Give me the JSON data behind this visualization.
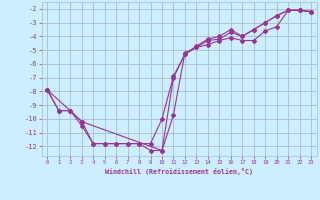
{
  "xlabel": "Windchill (Refroidissement éolien,°C)",
  "background_color": "#cceeff",
  "grid_color": "#aabbcc",
  "line_color": "#993399",
  "xlim": [
    -0.5,
    23.5
  ],
  "ylim": [
    -12.7,
    -1.5
  ],
  "yticks": [
    -12,
    -11,
    -10,
    -9,
    -8,
    -7,
    -6,
    -5,
    -4,
    -3,
    -2
  ],
  "xticks": [
    0,
    1,
    2,
    3,
    4,
    5,
    6,
    7,
    8,
    9,
    10,
    11,
    12,
    13,
    14,
    15,
    16,
    17,
    18,
    19,
    20,
    21,
    22,
    23
  ],
  "line1_x": [
    0,
    1,
    2,
    3,
    4,
    5,
    6,
    7,
    8,
    9,
    10,
    11,
    12,
    13,
    14,
    15,
    16,
    17,
    18,
    19,
    20,
    21,
    22,
    23
  ],
  "line1_y": [
    -7.9,
    -9.4,
    -9.4,
    -10.5,
    -11.8,
    -11.8,
    -11.8,
    -11.8,
    -11.8,
    -12.3,
    -12.3,
    -9.7,
    -5.2,
    -4.8,
    -4.6,
    -4.3,
    -4.1,
    -4.3,
    -4.3,
    -3.6,
    -3.3,
    -2.1,
    -2.1,
    -2.2
  ],
  "line2_x": [
    0,
    1,
    2,
    3,
    4,
    5,
    6,
    7,
    8,
    9,
    10,
    11,
    12,
    13,
    14,
    15,
    16,
    17,
    18,
    19,
    20,
    21,
    22,
    23
  ],
  "line2_y": [
    -7.9,
    -9.4,
    -9.4,
    -10.2,
    -11.8,
    -11.8,
    -11.8,
    -11.8,
    -11.8,
    -11.8,
    -10.0,
    -6.9,
    -5.3,
    -4.8,
    -4.3,
    -4.2,
    -3.7,
    -4.0,
    -3.5,
    -3.0,
    -2.5,
    -2.1,
    -2.1,
    -2.2
  ],
  "line3_x": [
    0,
    2,
    3,
    10,
    11,
    12,
    13,
    14,
    15,
    16,
    17,
    18,
    19,
    20,
    21,
    22,
    23
  ],
  "line3_y": [
    -7.9,
    -9.4,
    -10.2,
    -12.3,
    -7.0,
    -5.3,
    -4.7,
    -4.2,
    -4.0,
    -3.5,
    -4.0,
    -3.5,
    -3.0,
    -2.5,
    -2.1,
    -2.1,
    -2.2
  ]
}
